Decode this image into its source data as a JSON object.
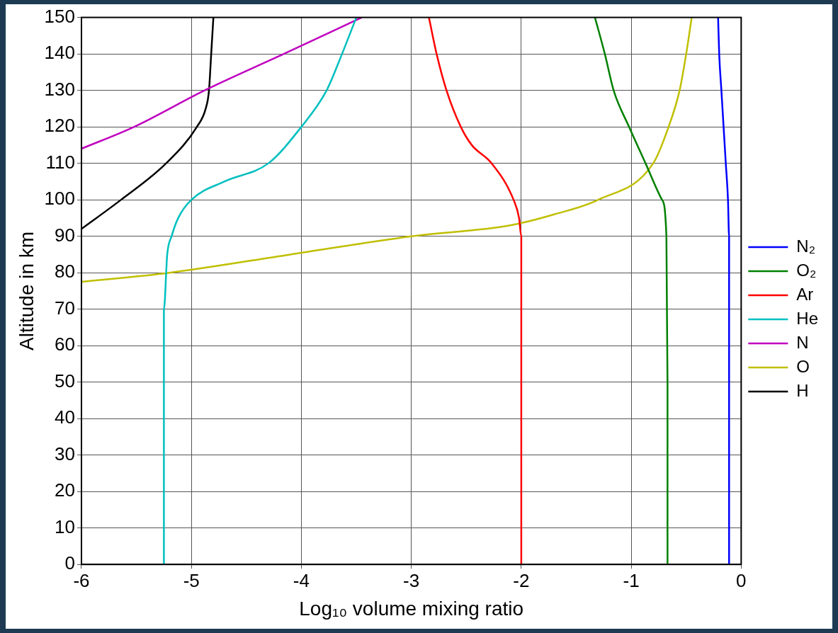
{
  "chart_data": {
    "type": "line",
    "x_label": "Log₁₀ volume mixing ratio",
    "y_label": "Altitude in km",
    "xlim": [
      -6,
      0
    ],
    "xticks": [
      -6,
      -5,
      -4,
      -3,
      -2,
      -1,
      0
    ],
    "ylim": [
      0,
      150
    ],
    "yticks": [
      0,
      10,
      20,
      30,
      40,
      50,
      60,
      70,
      80,
      90,
      100,
      110,
      120,
      130,
      140,
      150
    ],
    "grid": true,
    "legend": "right",
    "series": [
      {
        "name": "N₂",
        "color": "#0000ff",
        "x": [
          -0.11,
          -0.11,
          -0.11,
          -0.12,
          -0.14,
          -0.16,
          -0.18,
          -0.2,
          -0.21
        ],
        "y": [
          0,
          50,
          90,
          100,
          110,
          120,
          130,
          140,
          150
        ]
      },
      {
        "name": "O₂",
        "color": "#008000",
        "x": [
          -0.67,
          -0.67,
          -0.68,
          -0.72,
          -0.87,
          -1.02,
          -1.16,
          -1.24,
          -1.33
        ],
        "y": [
          0,
          50,
          90,
          100,
          110,
          120,
          130,
          140,
          150
        ]
      },
      {
        "name": "Ar",
        "color": "#ff0000",
        "x": [
          -2.0,
          -2.0,
          -2.0,
          -2.02,
          -2.07,
          -2.27,
          -2.45,
          -2.55,
          -2.68,
          -2.77,
          -2.84
        ],
        "y": [
          0,
          50,
          90,
          95,
          100,
          110,
          115,
          120,
          130,
          140,
          150
        ]
      },
      {
        "name": "He",
        "color": "#00bfbf",
        "x": [
          -5.25,
          -5.25,
          -5.22,
          -5.18,
          -5.12,
          -5.0,
          -4.7,
          -4.3,
          -4.0,
          -3.77,
          -3.63,
          -3.5
        ],
        "y": [
          0,
          70,
          85,
          90,
          95,
          100,
          105,
          110,
          120,
          130,
          140,
          150
        ]
      },
      {
        "name": "N",
        "color": "#bf00bf",
        "x": [
          -6.0,
          -5.52,
          -4.88,
          -4.16,
          -3.45
        ],
        "y": [
          114,
          120,
          130,
          140,
          150
        ]
      },
      {
        "name": "O",
        "color": "#bfbf00",
        "x": [
          -6.0,
          -5.2,
          -4.1,
          -3.0,
          -2.1,
          -1.7,
          -1.3,
          -0.8,
          -0.66,
          -0.56,
          -0.5,
          -0.45
        ],
        "y": [
          77.5,
          80,
          85,
          90,
          93,
          96,
          100,
          110,
          120,
          130,
          140,
          150
        ]
      },
      {
        "name": "H",
        "color": "#000000",
        "x": [
          -6.0,
          -5.64,
          -5.23,
          -4.95,
          -4.87,
          -4.84,
          -4.82,
          -4.8
        ],
        "y": [
          92,
          100,
          110,
          120,
          125,
          130,
          140,
          150
        ]
      }
    ]
  }
}
